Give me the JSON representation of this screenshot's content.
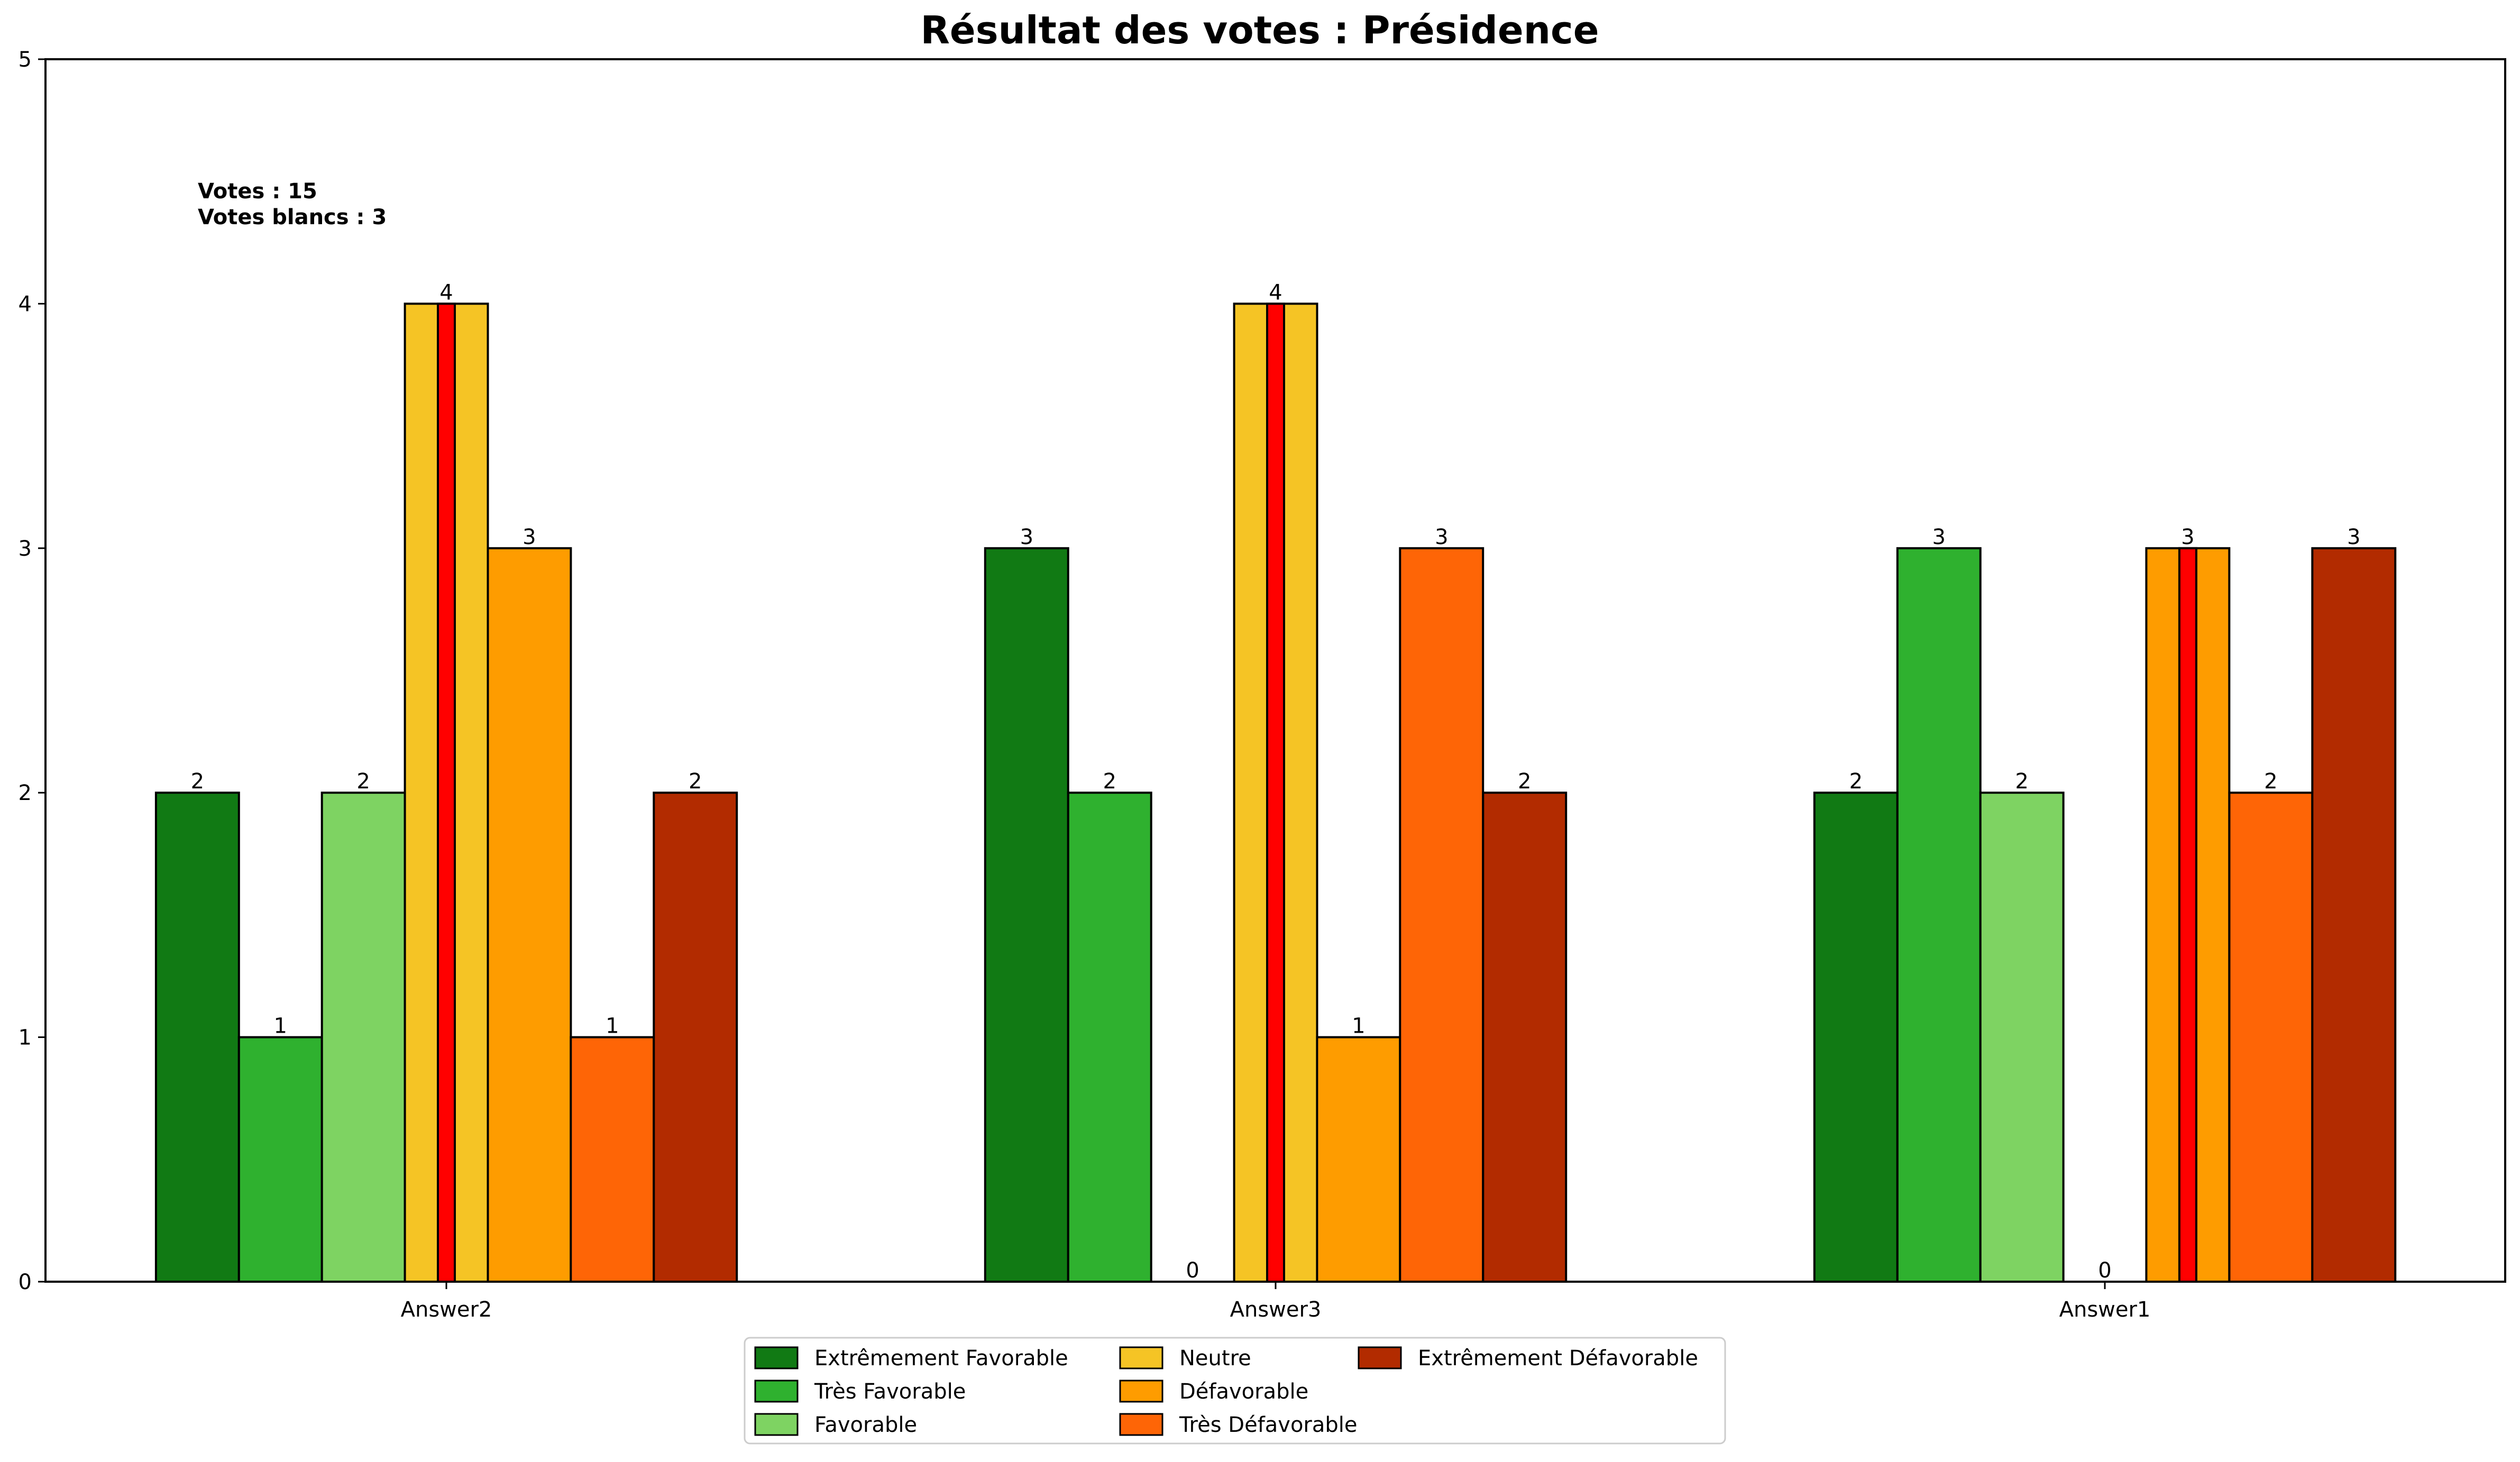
{
  "chart_data": {
    "type": "bar",
    "title": "Résultat des votes : Présidence",
    "xlabel": "",
    "ylabel": "",
    "ylim": [
      0,
      5
    ],
    "yticks": [
      "0",
      "1",
      "2",
      "3",
      "4",
      "5"
    ],
    "categories": [
      "Answer2",
      "Answer3",
      "Answer1"
    ],
    "series": [
      {
        "name": "Extrêmement Favorable",
        "color": "#117a14",
        "values": [
          2,
          3,
          2
        ]
      },
      {
        "name": "Très Favorable",
        "color": "#2fb12f",
        "values": [
          1,
          2,
          3
        ]
      },
      {
        "name": "Favorable",
        "color": "#7ed362",
        "values": [
          2,
          0,
          2
        ]
      },
      {
        "name": "Neutre",
        "color": "#f5c425",
        "values": [
          4,
          4,
          0
        ]
      },
      {
        "name": "Défavorable",
        "color": "#fe9c00",
        "values": [
          3,
          1,
          3
        ]
      },
      {
        "name": "Très Défavorable",
        "color": "#fe6506",
        "values": [
          1,
          3,
          2
        ]
      },
      {
        "name": "Extrêmement Défavorable",
        "color": "#b22b00",
        "values": [
          2,
          2,
          3
        ]
      }
    ],
    "median_marker": {
      "color": "#ff0000",
      "series_index_by_category": [
        3,
        3,
        4
      ]
    },
    "annotation": {
      "lines": [
        "Votes : 15",
        "Votes blancs : 3"
      ]
    },
    "legend": {
      "placement": "bottom-center",
      "columns": 3
    },
    "grid": false
  }
}
